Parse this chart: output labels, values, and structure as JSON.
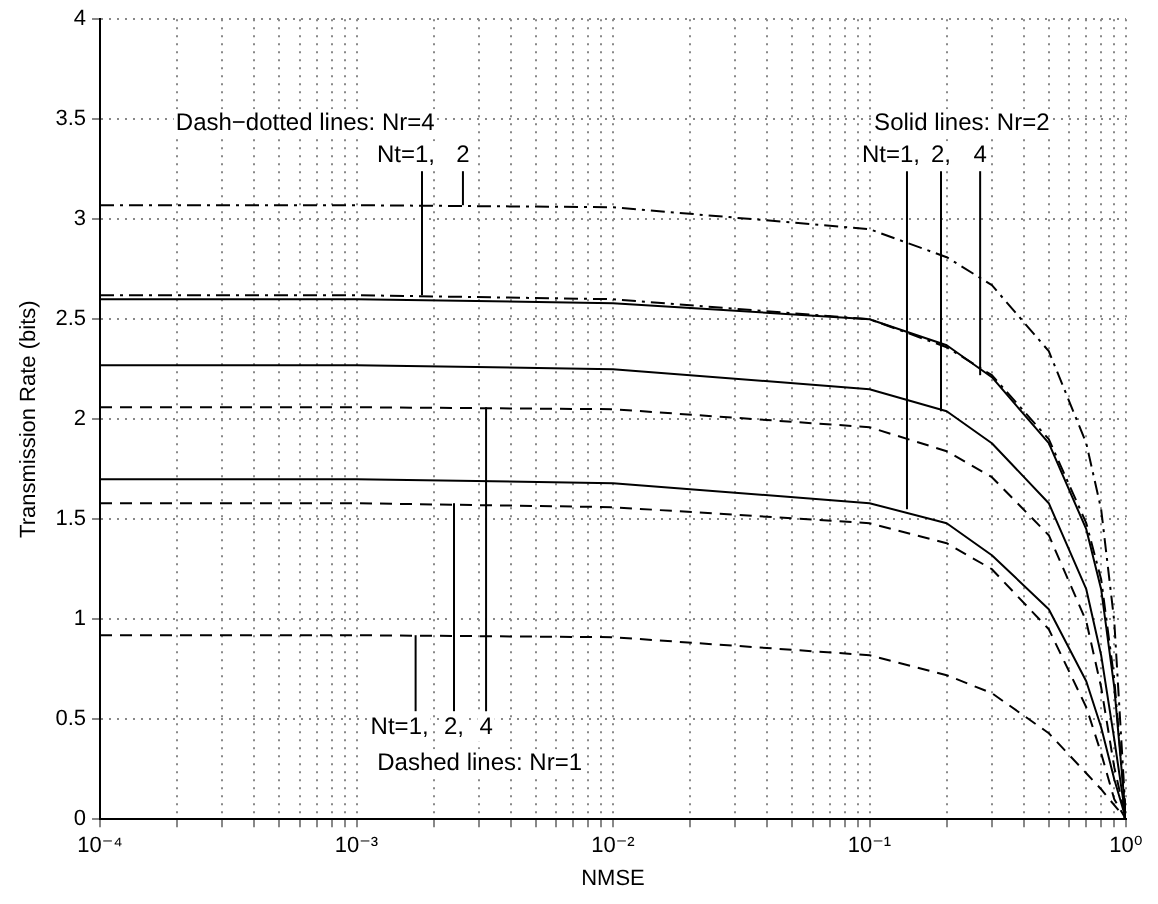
{
  "chart_data": {
    "type": "line",
    "xlabel": "NMSE",
    "ylabel": "Transmission Rate (bits)",
    "log": "x",
    "grid": true,
    "legend": false,
    "marker": "none",
    "x": [
      0.0001,
      0.001,
      0.01,
      0.1,
      0.2,
      0.3,
      0.5,
      0.7,
      0.8,
      0.9,
      1
    ],
    "series": [
      {
        "color": "#000000",
        "line_style": "dashed",
        "values": [
          0.92,
          0.92,
          0.91,
          0.82,
          0.72,
          0.63,
          0.43,
          0.23,
          0.15,
          0.07,
          0
        ]
      },
      {
        "color": "#000000",
        "line_style": "dashed",
        "values": [
          1.58,
          1.58,
          1.56,
          1.48,
          1.38,
          1.25,
          0.95,
          0.56,
          0.33,
          0.1,
          0
        ]
      },
      {
        "color": "#000000",
        "line_style": "dashed",
        "values": [
          2.06,
          2.06,
          2.05,
          1.96,
          1.84,
          1.71,
          1.42,
          0.99,
          0.66,
          0.26,
          0
        ]
      },
      {
        "color": "#000000",
        "line_style": "solid",
        "values": [
          1.7,
          1.7,
          1.68,
          1.58,
          1.48,
          1.32,
          1.05,
          0.69,
          0.46,
          0.2,
          0
        ]
      },
      {
        "color": "#000000",
        "line_style": "solid",
        "values": [
          2.27,
          2.27,
          2.25,
          2.15,
          2.04,
          1.88,
          1.58,
          1.15,
          0.82,
          0.4,
          0
        ]
      },
      {
        "color": "#000000",
        "line_style": "solid",
        "values": [
          2.6,
          2.6,
          2.58,
          2.5,
          2.37,
          2.21,
          1.88,
          1.45,
          1.15,
          0.66,
          0
        ]
      },
      {
        "color": "#000000",
        "line_style": "dashdot",
        "values": [
          2.62,
          2.62,
          2.6,
          2.5,
          2.36,
          2.22,
          1.9,
          1.48,
          1.2,
          0.7,
          0
        ]
      },
      {
        "color": "#000000",
        "line_style": "dashdot",
        "values": [
          3.07,
          3.07,
          3.06,
          2.95,
          2.81,
          2.67,
          2.34,
          1.88,
          1.55,
          0.99,
          0
        ]
      }
    ],
    "xlim": [
      0.0001,
      1
    ],
    "xticks": [
      {
        "value": 0.0001,
        "label": "10⁻⁴"
      },
      {
        "value": 0.0002,
        "label": null
      },
      {
        "value": 0.0003,
        "label": null
      },
      {
        "value": 0.0004,
        "label": null
      },
      {
        "value": 0.0005,
        "label": null
      },
      {
        "value": 0.0006,
        "label": null
      },
      {
        "value": 0.0007,
        "label": null
      },
      {
        "value": 0.0008,
        "label": null
      },
      {
        "value": 0.0009,
        "label": null
      },
      {
        "value": 0.001,
        "label": "10⁻³"
      },
      {
        "value": 0.002,
        "label": null
      },
      {
        "value": 0.003,
        "label": null
      },
      {
        "value": 0.004,
        "label": null
      },
      {
        "value": 0.005,
        "label": null
      },
      {
        "value": 0.006,
        "label": null
      },
      {
        "value": 0.007,
        "label": null
      },
      {
        "value": 0.008,
        "label": null
      },
      {
        "value": 0.009,
        "label": null
      },
      {
        "value": 0.01,
        "label": "10⁻²"
      },
      {
        "value": 0.02,
        "label": null
      },
      {
        "value": 0.03,
        "label": null
      },
      {
        "value": 0.04,
        "label": null
      },
      {
        "value": 0.05,
        "label": null
      },
      {
        "value": 0.06,
        "label": null
      },
      {
        "value": 0.07,
        "label": null
      },
      {
        "value": 0.08,
        "label": null
      },
      {
        "value": 0.09,
        "label": null
      },
      {
        "value": 0.1,
        "label": "10⁻¹"
      },
      {
        "value": 0.2,
        "label": null
      },
      {
        "value": 0.3,
        "label": null
      },
      {
        "value": 0.4,
        "label": null
      },
      {
        "value": 0.5,
        "label": null
      },
      {
        "value": 0.6,
        "label": null
      },
      {
        "value": 0.7,
        "label": null
      },
      {
        "value": 0.8,
        "label": null
      },
      {
        "value": 0.9,
        "label": null
      },
      {
        "value": 1,
        "label": "10⁰"
      }
    ],
    "ylim": [
      0,
      4
    ],
    "yticks": [
      0,
      0.5,
      1,
      1.5,
      2,
      2.5,
      3,
      3.5,
      4
    ],
    "annotations": [
      "Dash−dotted lines: Nr=4",
      {
        "text": "Nt=1,",
        "x": 0.0018,
        "y": 2.62
      },
      {
        "text": "2",
        "x": 0.0026,
        "y": 3.07
      },
      "Solid lines: Nr=2",
      {
        "text": "Nt=1,",
        "x": 0.14,
        "y": 1.55
      },
      {
        "text": "2,",
        "x": 0.19,
        "y": 2.04
      },
      {
        "text": "4",
        "x": 0.27,
        "y": 2.22
      },
      {
        "text": "Nt=1,",
        "x": 0.0017,
        "y": 0.92
      },
      {
        "text": "2,",
        "x": 0.0024,
        "y": 1.58
      },
      {
        "text": "4",
        "x": 0.0032,
        "y": 2.06
      },
      "Dashed lines: Nr=1"
    ]
  }
}
